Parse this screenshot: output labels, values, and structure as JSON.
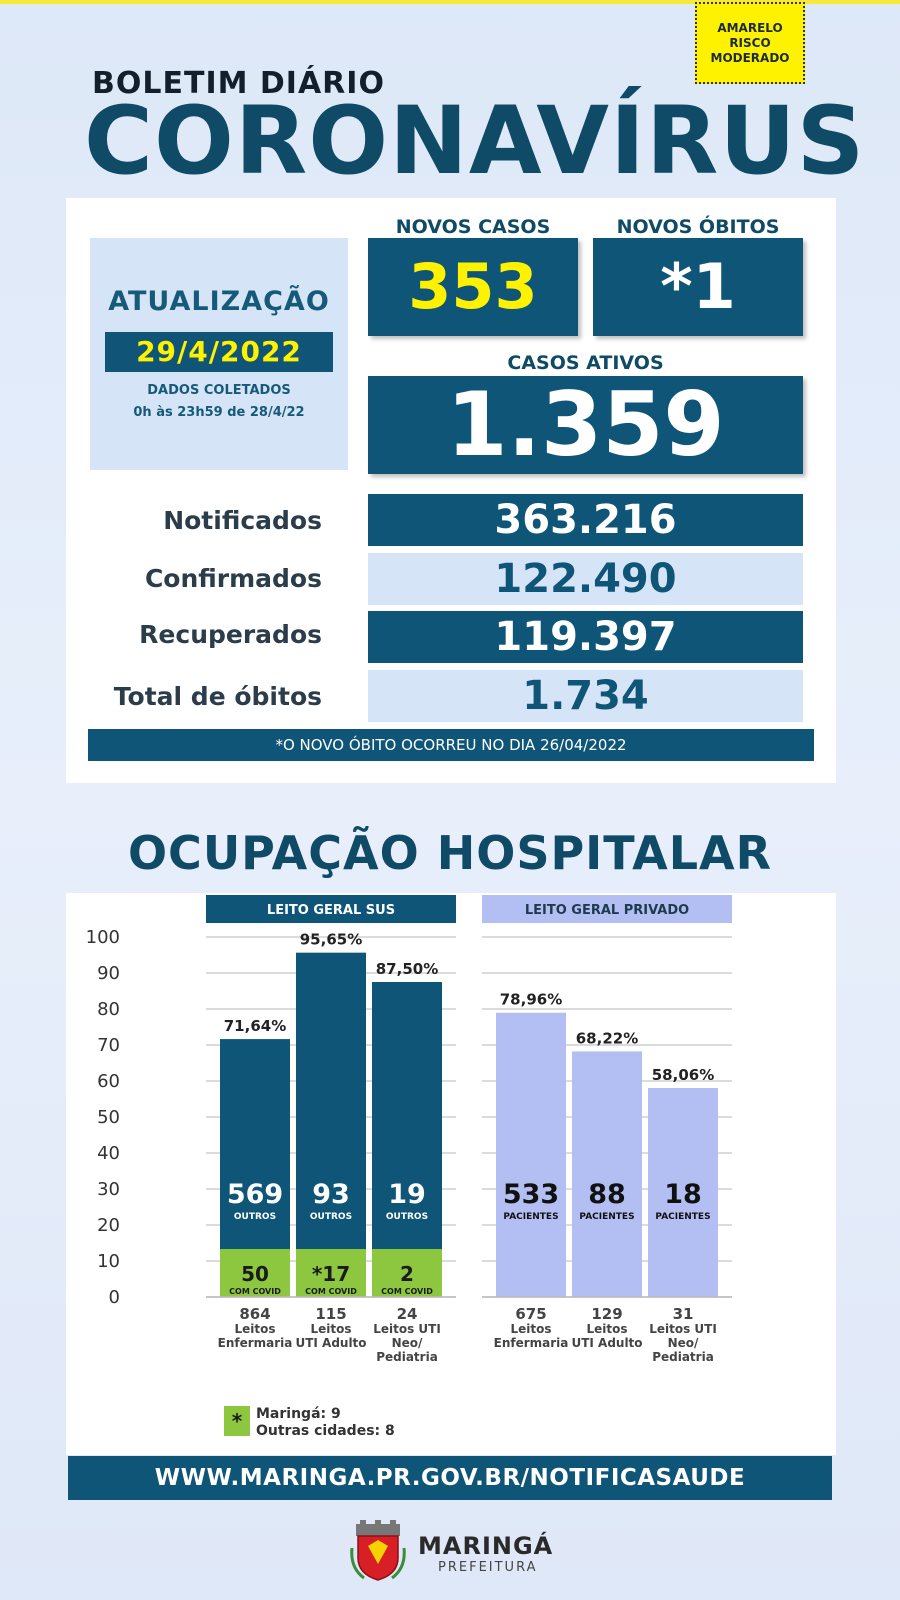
{
  "risk_badge": [
    "AMARELO",
    "RISCO",
    "MODERADO"
  ],
  "header": {
    "subtitle": "BOLETIM DIÁRIO",
    "title": "CORONAVÍRUS"
  },
  "update": {
    "title": "ATUALIZAÇÃO",
    "date": "29/4/2022",
    "collected_label": "DADOS COLETADOS",
    "collected_range": "0h às 23h59 de 28/4/22"
  },
  "highlights": {
    "new_cases_label": "NOVOS CASOS",
    "new_cases": "353",
    "new_deaths_label": "NOVOS ÓBITOS",
    "new_deaths": "*1",
    "active_label": "CASOS ATIVOS",
    "active": "1.359"
  },
  "totals": [
    {
      "label": "Notificados",
      "value": "363.216"
    },
    {
      "label": "Confirmados",
      "value": "122.490"
    },
    {
      "label": "Recuperados",
      "value": "119.397"
    },
    {
      "label": "Total de óbitos",
      "value": "1.734"
    }
  ],
  "footnote": "*O NOVO ÓBITO OCORREU NO DIA 26/04/2022",
  "hospital_title": "OCUPAÇÃO HOSPITALAR",
  "chart_data": {
    "type": "bar",
    "ylim": [
      0,
      100
    ],
    "y_ticks": [
      "0",
      "10",
      "20",
      "30",
      "40",
      "50",
      "60",
      "70",
      "80",
      "90",
      "100"
    ],
    "grid": true,
    "groups": [
      {
        "title": "LEITO GERAL SUS",
        "color": "#0f5577",
        "bars": [
          {
            "total": "864",
            "category": [
              "Leitos",
              "Enfermaria"
            ],
            "pct": 71.64,
            "pct_label": "71,64%",
            "main": "569",
            "main_label": "OUTROS",
            "covid": "50",
            "covid_label": "COM COVID"
          },
          {
            "total": "115",
            "category": [
              "Leitos",
              "UTI Adulto"
            ],
            "pct": 95.65,
            "pct_label": "95,65%",
            "main": "93",
            "main_label": "OUTROS",
            "covid": "*17",
            "covid_label": "COM COVID"
          },
          {
            "total": "24",
            "category": [
              "Leitos UTI",
              "Neo/",
              "Pediatria"
            ],
            "pct": 87.5,
            "pct_label": "87,50%",
            "main": "19",
            "main_label": "OUTROS",
            "covid": "2",
            "covid_label": "COM COVID"
          }
        ]
      },
      {
        "title": "LEITO GERAL PRIVADO",
        "color": "#b3bff2",
        "bars": [
          {
            "total": "675",
            "category": [
              "Leitos",
              "Enfermaria"
            ],
            "pct": 78.96,
            "pct_label": "78,96%",
            "main": "533",
            "main_label": "PACIENTES"
          },
          {
            "total": "129",
            "category": [
              "Leitos",
              "UTI Adulto"
            ],
            "pct": 68.22,
            "pct_label": "68,22%",
            "main": "88",
            "main_label": "PACIENTES"
          },
          {
            "total": "31",
            "category": [
              "Leitos UTI",
              "Neo/",
              "Pediatria"
            ],
            "pct": 58.06,
            "pct_label": "58,06%",
            "main": "18",
            "main_label": "PACIENTES"
          }
        ]
      }
    ],
    "covid_color": "#8dc63f",
    "legend": {
      "symbol": "*",
      "lines": [
        "Maringá: 9",
        "Outras cidades: 8"
      ]
    }
  },
  "url": "WWW.MARINGA.PR.GOV.BR/NOTIFICASAUDE",
  "logo": {
    "name": "MARINGÁ",
    "sub": "PREFEITURA"
  }
}
